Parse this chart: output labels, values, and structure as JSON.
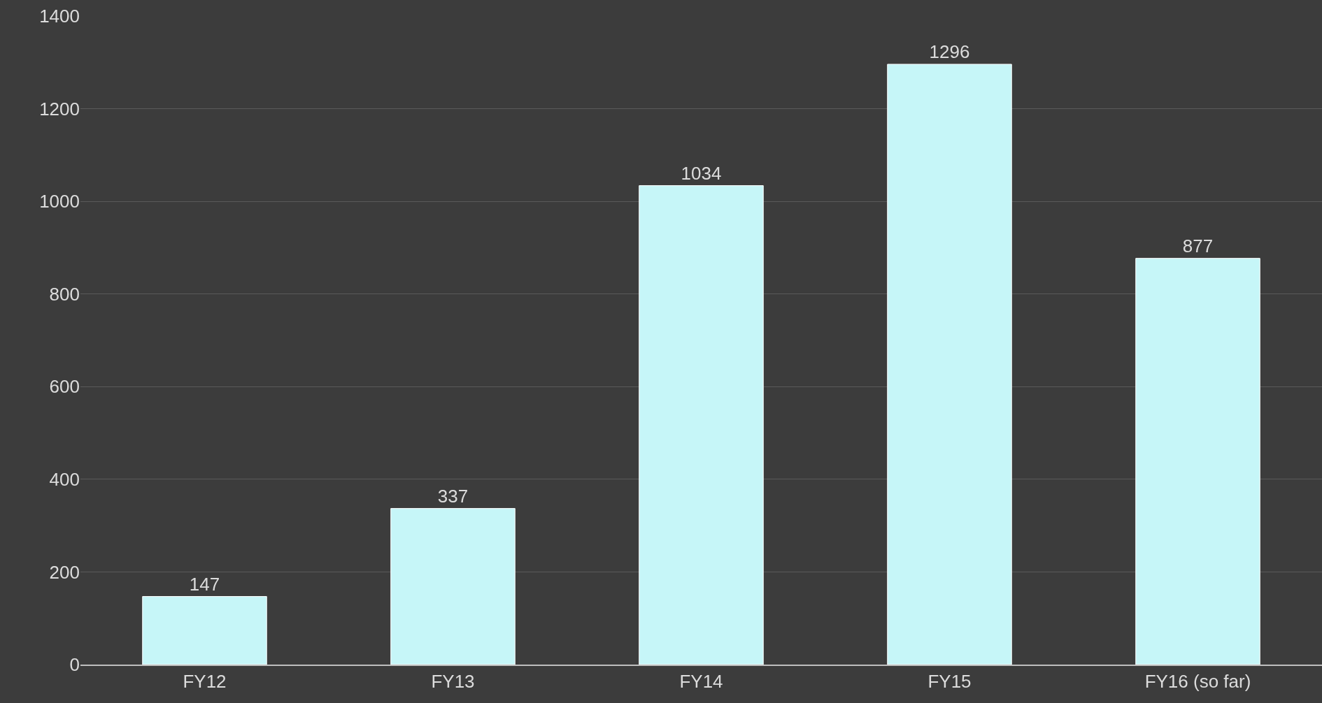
{
  "chart_data": {
    "type": "bar",
    "categories": [
      "FY12",
      "FY13",
      "FY14",
      "FY15",
      "FY16 (so far)"
    ],
    "values": [
      147,
      337,
      1034,
      1296,
      877
    ],
    "color": "#c6f6f8",
    "ylim": [
      0,
      1400
    ],
    "yticks": [
      0,
      200,
      400,
      600,
      800,
      1000,
      1200,
      1400
    ],
    "grid": "y",
    "data_labels": true
  }
}
